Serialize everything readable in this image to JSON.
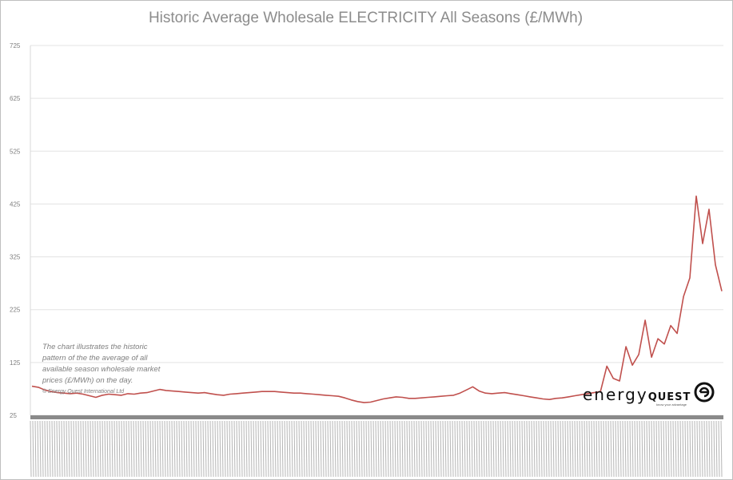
{
  "chart_data": {
    "type": "line",
    "title": "Historic Average Wholesale ELECTRICITY All Seasons (£/MWh)",
    "y_ticks": [
      "25",
      "125",
      "225",
      "325",
      "425",
      "525",
      "625",
      "725"
    ],
    "ylim": [
      25,
      725
    ],
    "grid": true,
    "color": "#c0504d",
    "series": [
      {
        "values": [
          80,
          78,
          73,
          70,
          68,
          67,
          66,
          67,
          65,
          62,
          59,
          63,
          65,
          64,
          63,
          66,
          65,
          67,
          68,
          71,
          74,
          72,
          71,
          70,
          69,
          68,
          67,
          68,
          66,
          64,
          63,
          65,
          66,
          67,
          68,
          69,
          70,
          70,
          70,
          69,
          68,
          67,
          67,
          66,
          65,
          64,
          63,
          62,
          61,
          58,
          54,
          51,
          49,
          50,
          53,
          56,
          58,
          60,
          59,
          57,
          57,
          58,
          59,
          60,
          61,
          62,
          63,
          67,
          73,
          79,
          71,
          67,
          66,
          67,
          68,
          66,
          64,
          62,
          60,
          58,
          56,
          55,
          57,
          58,
          60,
          62,
          64,
          66,
          68,
          70,
          118,
          95,
          90,
          155,
          120,
          140,
          205,
          135,
          170,
          160,
          195,
          180,
          250,
          285,
          440,
          350,
          415,
          310,
          260
        ]
      }
    ]
  },
  "note": {
    "line1": "The chart illustrates the historic",
    "line2": "pattern of the the average of all",
    "line3": "available season wholesale market",
    "line4": "prices (£/MWh) on the day.",
    "line5": "© Energy Quest International Ltd"
  },
  "logo": {
    "word": "energy",
    "word2": "QUEST",
    "tagline": "know your advantage"
  }
}
